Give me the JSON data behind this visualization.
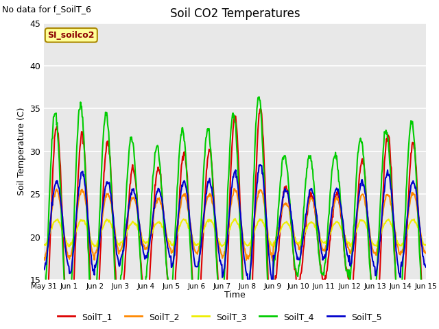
{
  "title": "Soil CO2 Temperatures",
  "top_left_text": "No data for f_SoilT_6",
  "ylabel": "Soil Temperature (C)",
  "xlabel": "Time",
  "annotation_text": "SI_soilco2",
  "ylim": [
    15,
    45
  ],
  "background_color": "#e8e8e8",
  "series": {
    "SoilT_1": {
      "color": "#dd0000",
      "lw": 1.5
    },
    "SoilT_2": {
      "color": "#ff8800",
      "lw": 1.5
    },
    "SoilT_3": {
      "color": "#eeee00",
      "lw": 1.5
    },
    "SoilT_4": {
      "color": "#00cc00",
      "lw": 1.5
    },
    "SoilT_5": {
      "color": "#0000cc",
      "lw": 1.5
    }
  },
  "xtick_labels": [
    "May 31",
    "Jun 1",
    "Jun 2",
    "Jun 3",
    "Jun 4",
    "Jun 5",
    "Jun 6",
    "Jun 7",
    "Jun 8",
    "Jun 9",
    "Jun 10",
    "Jun 11",
    "Jun 12",
    "Jun 13",
    "Jun 14",
    "Jun 15"
  ],
  "ytick_values": [
    15,
    20,
    25,
    30,
    35,
    40,
    45
  ],
  "legend_labels": [
    "SoilT_1",
    "SoilT_2",
    "SoilT_3",
    "SoilT_4",
    "SoilT_5"
  ],
  "legend_colors": [
    "#dd0000",
    "#ff8800",
    "#eeee00",
    "#00cc00",
    "#0000cc"
  ],
  "amp1": [
    13,
    12,
    11,
    8,
    8,
    10,
    10,
    14,
    15,
    6,
    5,
    5,
    9,
    12,
    11
  ],
  "amp2": [
    4,
    4,
    3.5,
    3,
    3,
    3.5,
    3.5,
    4,
    4,
    2.5,
    3,
    3,
    3.5,
    3.5,
    3.5
  ],
  "amp3": [
    1.5,
    1.5,
    1.5,
    1.2,
    1.2,
    1.5,
    1.5,
    1.5,
    1.5,
    1.2,
    1.2,
    1.2,
    1.5,
    1.5,
    1.5
  ],
  "amp4": [
    12,
    13,
    12,
    9,
    8,
    10,
    10,
    12,
    14,
    7,
    7,
    7,
    9,
    10,
    11
  ],
  "amp5": [
    5,
    6,
    5,
    4,
    4,
    5,
    5,
    6,
    7,
    4,
    4,
    4,
    5,
    6,
    5
  ],
  "base1": 20.0,
  "base2": 21.5,
  "base3": 20.5,
  "base4": 22.5,
  "base5": 21.5,
  "phase1": 0.0,
  "phase2": 0.0,
  "phase3": 0.0,
  "phase4": -0.06,
  "phase5": 0.0,
  "n_days": 15,
  "pts_per_day": 48
}
